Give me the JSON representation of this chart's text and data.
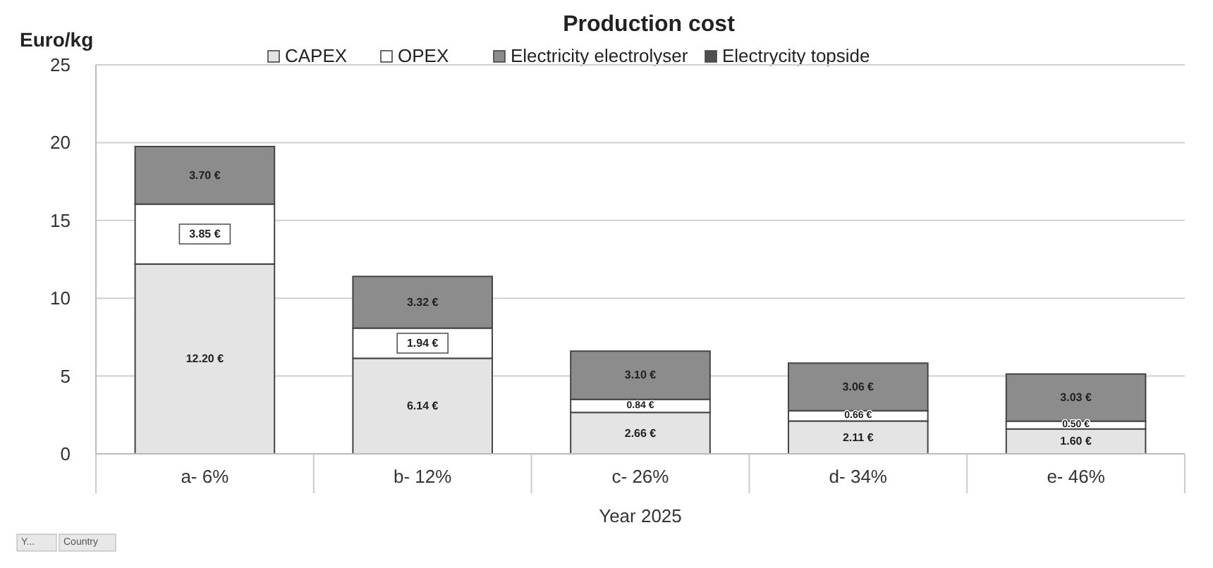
{
  "chart_data": {
    "type": "bar",
    "title": "Production cost",
    "ylabel": "Euro/kg",
    "xlabel": "Year 2025",
    "categories": [
      "a- 6%",
      "b- 12%",
      "c- 26%",
      "d- 34%",
      "e- 46%"
    ],
    "stacked": true,
    "series": [
      {
        "name": "CAPEX",
        "color": "#e4e4e4",
        "values": [
          12.2,
          6.14,
          2.66,
          2.11,
          1.6
        ],
        "value_labels": [
          "12.20 €",
          "6.14 €",
          "2.66 €",
          "2.11 €",
          "1.60 €"
        ]
      },
      {
        "name": "OPEX",
        "color": "#ffffff",
        "values": [
          3.85,
          1.94,
          0.84,
          0.66,
          0.5
        ],
        "value_labels": [
          "3.85 €",
          "1.94 €",
          "0.84 €",
          "0.66 €",
          "0.50 €"
        ]
      },
      {
        "name": "Electricity electrolyser",
        "color": "#8c8c8c",
        "values": [
          3.7,
          3.32,
          3.1,
          3.06,
          3.03
        ],
        "value_labels": [
          "3.70 €",
          "3.32 €",
          "3.10 €",
          "3.06 €",
          "3.03 €"
        ]
      },
      {
        "name": "Electrycity topside",
        "color": "#505050",
        "values": [
          null,
          null,
          null,
          null,
          null
        ]
      }
    ],
    "ylim": [
      0,
      25
    ],
    "yticks": [
      0,
      5,
      10,
      15,
      20,
      25
    ],
    "grid": "y",
    "legend": "top",
    "annotations": [
      "Y...",
      "Country"
    ]
  }
}
